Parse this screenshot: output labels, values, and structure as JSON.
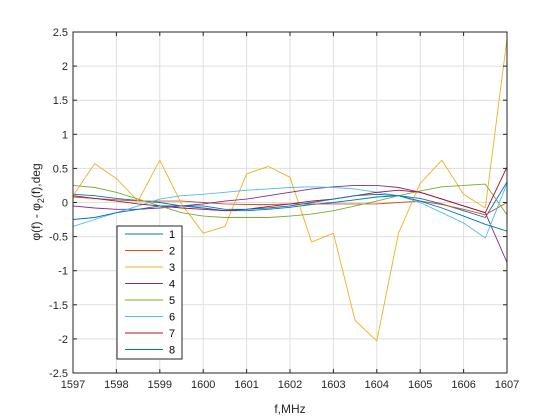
{
  "chart_data": {
    "type": "line",
    "title": "",
    "xlabel": "f,MHz",
    "ylabel": "φ(f) - φ₂(f),deg",
    "ylabel_parts": {
      "prefix": "φ(f) - φ",
      "sub": "2",
      "suffix": "(f),deg"
    },
    "xlim": [
      1597,
      1607
    ],
    "ylim": [
      -2.5,
      2.5
    ],
    "xticks": [
      1597,
      1598,
      1599,
      1600,
      1601,
      1602,
      1603,
      1604,
      1605,
      1606,
      1607
    ],
    "yticks": [
      -2.5,
      -2,
      -1.5,
      -1,
      -0.5,
      0,
      0.5,
      1,
      1.5,
      2,
      2.5
    ],
    "ytick_labels": [
      "-2.5",
      "-2",
      "-1.5",
      "-1",
      "-0.5",
      "0",
      "0.5",
      "1",
      "1.5",
      "2",
      "2.5"
    ],
    "grid": true,
    "legend_position": "bottom-left",
    "x": [
      1597,
      1597.5,
      1598,
      1598.5,
      1599,
      1599.5,
      1600,
      1600.5,
      1601,
      1601.5,
      1602,
      1602.5,
      1603,
      1603.5,
      1604,
      1604.5,
      1605,
      1605.5,
      1606,
      1606.5,
      1607
    ],
    "series": [
      {
        "name": "1",
        "color": "#0072bd",
        "values": [
          0.12,
          0.1,
          0.06,
          0.03,
          0.0,
          -0.05,
          -0.08,
          -0.12,
          -0.12,
          -0.1,
          -0.07,
          -0.03,
          0.0,
          0.04,
          0.08,
          0.1,
          0.06,
          -0.02,
          -0.12,
          -0.22,
          0.3
        ]
      },
      {
        "name": "2",
        "color": "#d95319",
        "values": [
          0.08,
          0.06,
          0.04,
          0.02,
          0.02,
          0.02,
          0.0,
          -0.02,
          -0.03,
          -0.03,
          -0.02,
          -0.02,
          -0.02,
          -0.02,
          -0.02,
          0.0,
          0.02,
          -0.03,
          -0.1,
          -0.18,
          0.0
        ]
      },
      {
        "name": "3",
        "color": "#edb120",
        "values": [
          0.1,
          0.57,
          0.35,
          0.02,
          0.62,
          -0.02,
          -0.45,
          -0.35,
          0.42,
          0.53,
          0.37,
          -0.58,
          -0.45,
          -1.73,
          -2.03,
          -0.45,
          0.28,
          0.62,
          0.12,
          -0.08,
          2.4
        ]
      },
      {
        "name": "4",
        "color": "#7e2f8e",
        "values": [
          -0.05,
          -0.08,
          -0.1,
          -0.1,
          -0.08,
          -0.05,
          -0.02,
          0.02,
          0.05,
          0.1,
          0.15,
          0.2,
          0.23,
          0.25,
          0.25,
          0.22,
          0.15,
          0.05,
          -0.05,
          -0.15,
          -0.88
        ]
      },
      {
        "name": "5",
        "color": "#77ac30",
        "values": [
          0.25,
          0.22,
          0.15,
          0.05,
          -0.05,
          -0.15,
          -0.2,
          -0.22,
          -0.22,
          -0.22,
          -0.2,
          -0.17,
          -0.12,
          -0.05,
          0.02,
          0.1,
          0.17,
          0.23,
          0.25,
          0.27,
          -0.18
        ]
      },
      {
        "name": "6",
        "color": "#4dbeee",
        "values": [
          -0.35,
          -0.25,
          -0.15,
          -0.05,
          0.05,
          0.1,
          0.12,
          0.15,
          0.18,
          0.2,
          0.22,
          0.23,
          0.22,
          0.2,
          0.15,
          0.1,
          0.0,
          -0.15,
          -0.3,
          -0.52,
          0.28
        ]
      },
      {
        "name": "7",
        "color": "#a2142f",
        "values": [
          0.1,
          0.06,
          0.02,
          -0.02,
          -0.05,
          -0.08,
          -0.1,
          -0.12,
          -0.1,
          -0.06,
          -0.02,
          0.02,
          0.05,
          0.1,
          0.15,
          0.18,
          0.15,
          0.05,
          -0.05,
          -0.15,
          0.52
        ]
      },
      {
        "name": "8",
        "color": "#0072bd",
        "values": [
          -0.25,
          -0.22,
          -0.15,
          -0.1,
          -0.05,
          -0.05,
          -0.05,
          -0.1,
          -0.1,
          -0.08,
          -0.05,
          0.0,
          0.05,
          0.1,
          0.12,
          0.1,
          0.02,
          -0.08,
          -0.2,
          -0.32,
          -0.42
        ]
      }
    ]
  }
}
